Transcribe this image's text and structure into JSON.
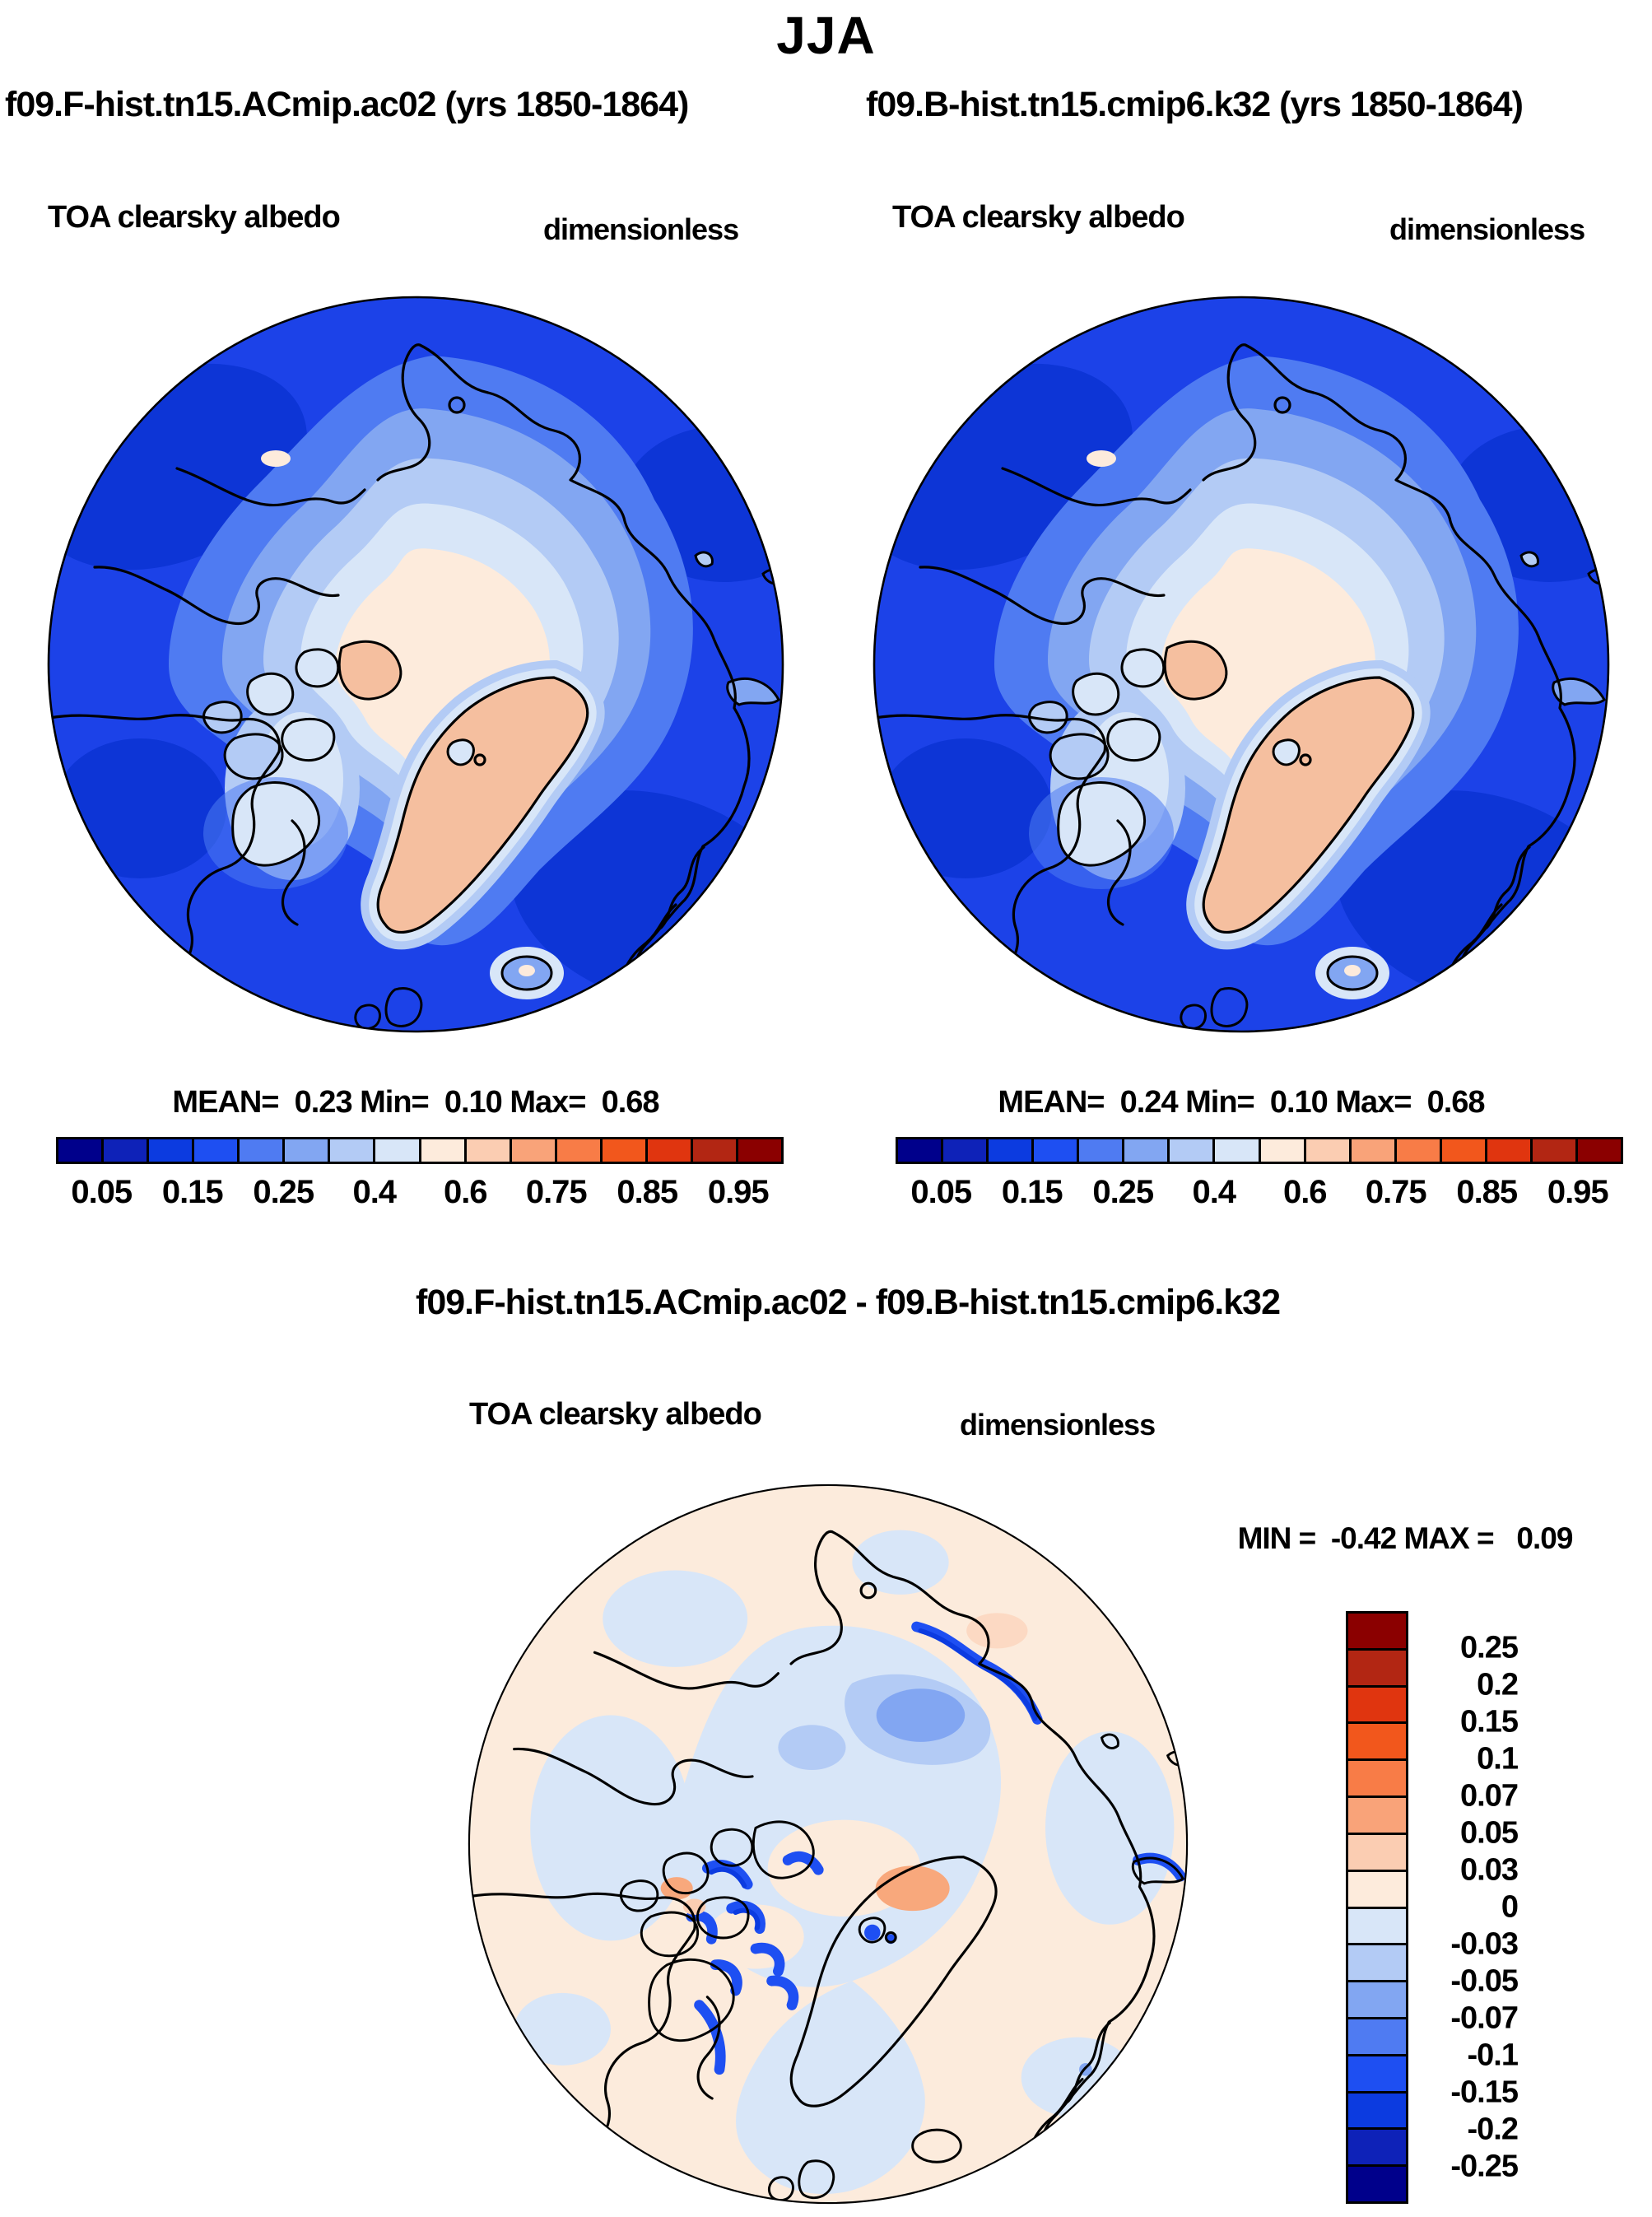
{
  "title": "JJA",
  "panels": [
    {
      "subtitle": "f09.F-hist.tn15.ACmip.ac02 (yrs 1850-1864)",
      "var_label": "TOA clearsky albedo",
      "units_label": "dimensionless",
      "stats": "MEAN=  0.23 Min=  0.10 Max=  0.68"
    },
    {
      "subtitle": "f09.B-hist.tn15.cmip6.k32 (yrs 1850-1864)",
      "var_label": "TOA clearsky albedo",
      "units_label": "dimensionless",
      "stats": "MEAN=  0.24 Min=  0.10 Max=  0.68"
    }
  ],
  "diff_panel": {
    "title": "f09.F-hist.tn15.ACmip.ac02 - f09.B-hist.tn15.cmip6.k32",
    "var_label": "TOA clearsky albedo",
    "units_label": "dimensionless",
    "stats": "MIN =  -0.42 MAX =   0.09"
  },
  "colorbar": {
    "palette": [
      "#00008B",
      "#0E22B8",
      "#0C3BE0",
      "#1E4FF2",
      "#4F7BF2",
      "#82A6F2",
      "#B3CBF5",
      "#D8E6F8",
      "#FDEBDC",
      "#FBCDB2",
      "#F9A379",
      "#F87C47",
      "#F2571C",
      "#E0350F",
      "#B22613",
      "#8B0000"
    ],
    "tick_labels": [
      "0.05",
      "0.15",
      "0.25",
      "0.4",
      "0.6",
      "0.75",
      "0.85",
      "0.95"
    ],
    "tick_indices": [
      1,
      3,
      5,
      7,
      9,
      11,
      13,
      15
    ],
    "n_cells": 16
  },
  "diff_colorbar": {
    "palette_top_to_bottom": [
      "#8B0000",
      "#B22613",
      "#E0350F",
      "#F2571C",
      "#F87C47",
      "#F9A379",
      "#FBCDB2",
      "#FDEBDC",
      "#D8E6F8",
      "#B3CBF5",
      "#82A6F2",
      "#4F7BF2",
      "#1E4FF2",
      "#0C3BE0",
      "#0E22B8",
      "#00008B"
    ],
    "tick_labels": [
      "0.25",
      "0.2",
      "0.15",
      "0.1",
      "0.07",
      "0.05",
      "0.03",
      "0",
      "-0.03",
      "-0.05",
      "-0.07",
      "-0.1",
      "-0.15",
      "-0.2",
      "-0.25"
    ],
    "tick_indices": [
      1,
      2,
      3,
      4,
      5,
      6,
      7,
      8,
      9,
      10,
      11,
      12,
      13,
      14,
      15
    ],
    "n_cells": 16
  },
  "chart_data": [
    {
      "type": "heatmap",
      "subtype": "polar-stereographic-contour-map",
      "region": "Arctic (North Pole)",
      "title": "f09.F-hist.tn15.ACmip.ac02 (yrs 1850-1864)",
      "season": "JJA",
      "variable": "TOA clearsky albedo",
      "units": "dimensionless",
      "mean": 0.23,
      "min": 0.1,
      "max": 0.68,
      "contour_levels": [
        0.05,
        0.1,
        0.15,
        0.2,
        0.25,
        0.3,
        0.4,
        0.5,
        0.6,
        0.7,
        0.75,
        0.8,
        0.85,
        0.9,
        0.95
      ],
      "labeled_levels": [
        0.05,
        0.15,
        0.25,
        0.4,
        0.6,
        0.75,
        0.85,
        0.95
      ],
      "palette": [
        "#00008B",
        "#0E22B8",
        "#0C3BE0",
        "#1E4FF2",
        "#4F7BF2",
        "#82A6F2",
        "#B3CBF5",
        "#D8E6F8",
        "#FDEBDC",
        "#FBCDB2",
        "#F9A379",
        "#F87C47",
        "#F2571C",
        "#E0350F",
        "#B22613",
        "#8B0000"
      ],
      "legend_position": "bottom",
      "notes": "Ocean ~0.1-0.2 (blue), central Arctic sea ice ~0.4-0.5 (cream), Greenland ice sheet ~0.5-0.6 (peach)"
    },
    {
      "type": "heatmap",
      "subtype": "polar-stereographic-contour-map",
      "region": "Arctic (North Pole)",
      "title": "f09.B-hist.tn15.cmip6.k32 (yrs 1850-1864)",
      "season": "JJA",
      "variable": "TOA clearsky albedo",
      "units": "dimensionless",
      "mean": 0.24,
      "min": 0.1,
      "max": 0.68,
      "contour_levels": [
        0.05,
        0.1,
        0.15,
        0.2,
        0.25,
        0.3,
        0.4,
        0.5,
        0.6,
        0.7,
        0.75,
        0.8,
        0.85,
        0.9,
        0.95
      ],
      "labeled_levels": [
        0.05,
        0.15,
        0.25,
        0.4,
        0.6,
        0.75,
        0.85,
        0.95
      ],
      "palette": [
        "#00008B",
        "#0E22B8",
        "#0C3BE0",
        "#1E4FF2",
        "#4F7BF2",
        "#82A6F2",
        "#B3CBF5",
        "#D8E6F8",
        "#FDEBDC",
        "#FBCDB2",
        "#F9A379",
        "#F87C47",
        "#F2571C",
        "#E0350F",
        "#B22613",
        "#8B0000"
      ],
      "legend_position": "bottom"
    },
    {
      "type": "heatmap",
      "subtype": "polar-stereographic-contour-map",
      "region": "Arctic (North Pole)",
      "title": "f09.F-hist.tn15.ACmip.ac02 - f09.B-hist.tn15.cmip6.k32",
      "season": "JJA",
      "variable": "TOA clearsky albedo difference",
      "units": "dimensionless",
      "min": -0.42,
      "max": 0.09,
      "contour_levels": [
        -0.25,
        -0.2,
        -0.15,
        -0.1,
        -0.07,
        -0.05,
        -0.03,
        0,
        0.03,
        0.05,
        0.07,
        0.1,
        0.15,
        0.2,
        0.25
      ],
      "palette": [
        "#00008B",
        "#0E22B8",
        "#0C3BE0",
        "#1E4FF2",
        "#4F7BF2",
        "#82A6F2",
        "#B3CBF5",
        "#D8E6F8",
        "#FDEBDC",
        "#FBCDB2",
        "#F9A379",
        "#F87C47",
        "#F2571C",
        "#E0350F",
        "#B22613",
        "#8B0000"
      ],
      "legend_position": "right",
      "notes": "Mostly -0.03..0.03; strong negative (blue) bands along Canadian Archipelago and Siberian coast sea-ice edges"
    }
  ]
}
